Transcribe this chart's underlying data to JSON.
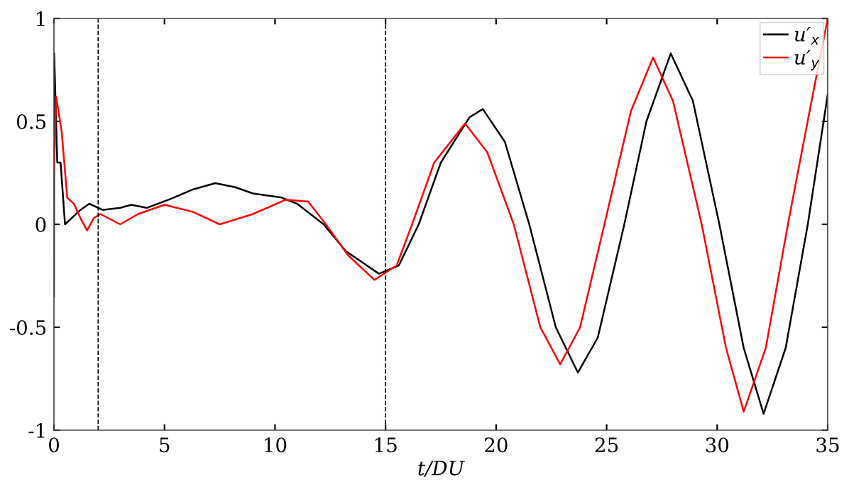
{
  "chart_data": {
    "type": "line",
    "xlabel": "t/DU",
    "xlim": [
      0,
      35
    ],
    "xticks": [
      0,
      5,
      10,
      15,
      20,
      25,
      30,
      35
    ],
    "ylim": [
      -1,
      1
    ],
    "yticks": [
      {
        "value": -1,
        "label": "-1"
      },
      {
        "value": -0.5,
        "label": "-0.5"
      },
      0,
      0.5,
      1
    ],
    "grid": false,
    "legend": "top right",
    "marker": "none",
    "line_style": "solid",
    "ref_lines": [
      {
        "axis": "x",
        "value": 2,
        "color": "#000000",
        "line_style": "dashed"
      },
      {
        "axis": "x",
        "value": 15,
        "color": "#000000",
        "line_style": "dashed"
      }
    ],
    "series": [
      {
        "name": "u′$_{x}$",
        "color": "#000000",
        "x": [
          0,
          0.01,
          0.15,
          0.3,
          0.5,
          0.8,
          1.2,
          1.6,
          2.2,
          3,
          3.5,
          4.2,
          5.2,
          6.3,
          7.3,
          8.2,
          9,
          10.3,
          11,
          12.2,
          13.2,
          14.7,
          15.6,
          16.5,
          17.5,
          18.8,
          19.4,
          20.4,
          21.5,
          22.7,
          23.7,
          24.6,
          25.8,
          26.8,
          27.9,
          28.9,
          30.1,
          31.2,
          32.1,
          33.1,
          34.1,
          35
        ],
        "values": [
          -0.35,
          0.83,
          0.3,
          0.3,
          0.0,
          0.03,
          0.07,
          0.1,
          0.07,
          0.08,
          0.095,
          0.08,
          0.12,
          0.17,
          0.2,
          0.18,
          0.15,
          0.13,
          0.1,
          0.0,
          -0.13,
          -0.24,
          -0.2,
          0.0,
          0.3,
          0.52,
          0.56,
          0.4,
          0.0,
          -0.5,
          -0.72,
          -0.55,
          0.0,
          0.5,
          0.83,
          0.6,
          0.0,
          -0.6,
          -0.92,
          -0.6,
          0.0,
          0.63
        ]
      },
      {
        "name": "u′$_{y}$",
        "color": "#ff0000",
        "x": [
          0,
          0.1,
          0.35,
          0.6,
          0.9,
          1.2,
          1.5,
          1.8,
          2.1,
          3,
          3.8,
          5,
          6.3,
          7.5,
          9,
          10.5,
          11.5,
          12.3,
          13.3,
          14.5,
          15.5,
          16.2,
          17.2,
          18.6,
          19.6,
          20.8,
          22,
          22.9,
          23.8,
          24.9,
          26.1,
          27.1,
          28,
          29.3,
          30.4,
          31.2,
          32.2,
          33.2,
          34.2,
          35
        ],
        "values": [
          0.25,
          0.62,
          0.45,
          0.13,
          0.1,
          0.03,
          -0.03,
          0.03,
          0.05,
          0.0,
          0.05,
          0.095,
          0.06,
          0.0,
          0.05,
          0.12,
          0.11,
          0.0,
          -0.15,
          -0.27,
          -0.2,
          0.0,
          0.3,
          0.49,
          0.35,
          0.0,
          -0.5,
          -0.68,
          -0.5,
          0.0,
          0.55,
          0.81,
          0.6,
          0.0,
          -0.6,
          -0.91,
          -0.6,
          0.0,
          0.56,
          1.0
        ]
      }
    ]
  }
}
